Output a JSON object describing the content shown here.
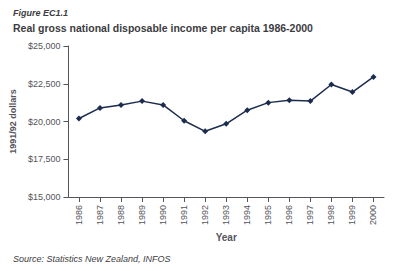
{
  "chart_data": {
    "type": "line",
    "title": "Real gross national disposable income per capita 1986-2000",
    "annotations": [
      "Figure EC1.1",
      "Source: Statistics New Zealand, INFOS"
    ],
    "xlabel": "Year",
    "ylabel": "1991/92 dollars",
    "x": [
      1986,
      1987,
      1988,
      1989,
      1990,
      1991,
      1992,
      1993,
      1994,
      1995,
      1996,
      1997,
      1998,
      1999,
      2000
    ],
    "values": [
      20200,
      20900,
      21100,
      21350,
      21100,
      20050,
      19350,
      19850,
      20750,
      21250,
      21400,
      21350,
      22450,
      21950,
      22950
    ],
    "xlim": [
      1985.5,
      2000.5
    ],
    "xticks": [
      1986,
      1987,
      1988,
      1989,
      1990,
      1991,
      1992,
      1993,
      1994,
      1995,
      1996,
      1997,
      1998,
      1999,
      2000
    ],
    "ylim": [
      15000,
      25000
    ],
    "yticks": [
      {
        "value": 15000,
        "label": "$15,000"
      },
      {
        "value": 17500,
        "label": "$17,500"
      },
      {
        "value": 20000,
        "label": "$20,000"
      },
      {
        "value": 22500,
        "label": "$22,500"
      },
      {
        "value": 25000,
        "label": "$25,000"
      }
    ],
    "color": "#1b2c4e",
    "marker": "diamond",
    "grid": false
  }
}
